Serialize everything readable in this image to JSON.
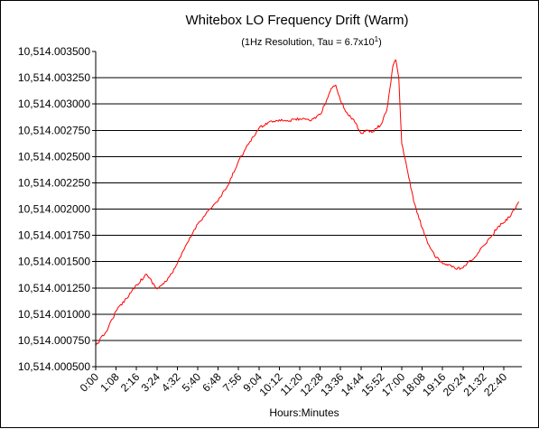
{
  "chart_data": {
    "type": "line",
    "title": "Whitebox LO Frequency Drift (Warm)",
    "subtitle": {
      "prefix": "(1Hz Resolution, Tau = 6.7x10",
      "superscript": "1",
      "suffix": ")"
    },
    "xlabel": "Hours:Minutes",
    "ylabel": "",
    "x_tick_labels": [
      "0:00",
      "1:08",
      "2:16",
      "3:24",
      "4:32",
      "5:40",
      "6:48",
      "7:56",
      "9:04",
      "10:12",
      "11:20",
      "12:28",
      "13:36",
      "14:44",
      "15:52",
      "17:00",
      "18:08",
      "19:16",
      "20:24",
      "21:32",
      "22:40"
    ],
    "xlim": [
      "0:00",
      "23:40"
    ],
    "y_tick_labels": [
      "10,514.003500",
      "10,514.003250",
      "10,514.003000",
      "10,514.002750",
      "10,514.002500",
      "10,514.002250",
      "10,514.002000",
      "10,514.001750",
      "10,514.001500",
      "10,514.001250",
      "10,514.001000",
      "10,514.000750",
      "10,514.000500"
    ],
    "ylim": [
      10514.0005,
      10514.0035
    ],
    "y_grid_step": 0.00025,
    "grid": "horizontal",
    "plot_background": "#ffffff",
    "line_color": "#ff0000",
    "series": [
      {
        "x": [
          "0:00",
          "0:34",
          "1:08",
          "1:42",
          "2:16",
          "2:50",
          "3:24",
          "3:58",
          "4:32",
          "5:06",
          "5:40",
          "6:14",
          "6:48",
          "7:22",
          "7:56",
          "8:30",
          "9:04",
          "9:38",
          "10:12",
          "10:46",
          "11:20",
          "11:54",
          "12:28",
          "12:50",
          "13:05",
          "13:20",
          "13:36",
          "14:00",
          "14:20",
          "14:44",
          "15:05",
          "15:20",
          "15:52",
          "16:10",
          "16:20",
          "16:30",
          "16:40",
          "16:50",
          "17:00",
          "17:20",
          "17:40",
          "18:08",
          "18:30",
          "18:50",
          "19:16",
          "19:40",
          "20:00",
          "20:24",
          "20:50",
          "21:10",
          "21:32",
          "22:00",
          "22:20",
          "22:40",
          "23:05",
          "23:30"
        ],
        "values": [
          10514.0007,
          10514.00083,
          10514.00103,
          10514.00115,
          10514.00128,
          10514.00138,
          10514.00124,
          10514.00132,
          10514.00148,
          10514.00168,
          10514.00186,
          10514.00198,
          10514.00208,
          10514.00223,
          10514.00246,
          10514.00262,
          10514.00277,
          10514.00283,
          10514.00285,
          10514.00284,
          10514.00286,
          10514.00284,
          10514.0029,
          10514.00304,
          10514.00315,
          10514.00318,
          10514.00303,
          10514.0029,
          10514.00285,
          10514.00272,
          10514.00275,
          10514.00273,
          10514.00281,
          10514.00294,
          10514.00314,
          10514.00336,
          10514.00342,
          10514.00325,
          10514.00262,
          10514.00235,
          10514.00207,
          10514.00182,
          10514.00166,
          10514.00155,
          10514.00148,
          10514.00147,
          10514.00143,
          10514.00144,
          10514.00151,
          10514.00156,
          10514.00165,
          10514.00175,
          10514.00183,
          10514.00187,
          10514.00195,
          10514.00207
        ]
      }
    ]
  }
}
